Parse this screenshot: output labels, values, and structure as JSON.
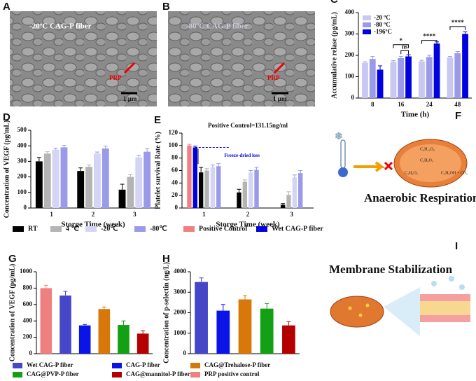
{
  "images": [
    {
      "panel": "A",
      "label": "-20ºC CAG-P fiber",
      "arrow_label": "PRP",
      "scale": "1 μm"
    },
    {
      "panel": "B",
      "label": "-80ºC CAG-P fiber",
      "arrow_label": "PRP",
      "scale": "1 μm"
    }
  ],
  "diagrams": [
    {
      "panel": "F",
      "title": "Anaerobic Respiration",
      "formulas": [
        "C₆H₁₂O₆",
        "C₃H₄O₃",
        "C₃H₆O₃",
        "C₂H₅OH + CO₂"
      ]
    },
    {
      "panel": "I",
      "title": "Membrane Stabilization"
    }
  ],
  "chart_data": [
    {
      "panel": "C",
      "type": "bar",
      "x_label": "Time (h)",
      "y_label": "Accumulative relase (pg/mL)",
      "categories": [
        "8",
        "16",
        "24",
        "48"
      ],
      "series": [
        {
          "name": "-20 ºC",
          "color": "#c8c8f2",
          "values": [
            165,
            170,
            172,
            190
          ],
          "errors": [
            5,
            5,
            5,
            5
          ]
        },
        {
          "name": "-80 ºC",
          "color": "#9a9ae8",
          "values": [
            183,
            187,
            192,
            210
          ],
          "errors": [
            12,
            8,
            8,
            8
          ]
        },
        {
          "name": "-196ºC",
          "color": "#0000e0",
          "values": [
            133,
            195,
            255,
            300
          ],
          "errors": [
            18,
            8,
            8,
            10
          ]
        }
      ],
      "ylim": [
        0,
        400
      ],
      "yticks": [
        0,
        100,
        200,
        300,
        400
      ],
      "annotations": [
        "*",
        "ns",
        "****",
        "****"
      ]
    },
    {
      "panel": "D",
      "type": "bar",
      "x_label": "Storge Time (week)",
      "y_label": "Concentration of VEGF (pg/mL)",
      "categories": [
        "1",
        "2",
        "3"
      ],
      "series": [
        {
          "color": "#000000",
          "values": [
            300,
            238,
            118
          ],
          "errors": [
            25,
            20,
            35
          ]
        },
        {
          "color": "#b4b4b4",
          "values": [
            350,
            265,
            200
          ],
          "errors": [
            12,
            12,
            15
          ]
        },
        {
          "color": "#d4d4f6",
          "values": [
            375,
            350,
            325
          ],
          "errors": [
            10,
            10,
            15
          ]
        },
        {
          "color": "#9a9ae8",
          "values": [
            390,
            383,
            362
          ],
          "errors": [
            12,
            15,
            20
          ]
        }
      ],
      "ylim": [
        0,
        500
      ],
      "yticks": [
        0,
        100,
        200,
        300,
        400,
        500
      ]
    },
    {
      "panel": "E",
      "type": "bar",
      "title": "Positive Control=131.15ng/ml",
      "annotation": "Freeze-dried loss",
      "x_label": "Storge Time (week)",
      "y_label": "Platelet survival Rate (%)",
      "categories": [
        "1",
        "2",
        "3"
      ],
      "series": [
        {
          "name": "Positive Control",
          "color": "#f08080",
          "values": [
            100,
            null,
            null
          ],
          "errors": [
            2,
            null,
            null
          ]
        },
        {
          "name": "Wet CAG-P fiber",
          "color": "#0000e0",
          "values": [
            97,
            null,
            null
          ],
          "errors": [
            2,
            null,
            null
          ]
        },
        {
          "name": "RT",
          "color": "#000000",
          "values": [
            57,
            25,
            5
          ],
          "errors": [
            8,
            5,
            2
          ]
        },
        {
          "name": "4 ℃",
          "color": "#b4b4b4",
          "values": [
            60,
            42,
            21
          ],
          "errors": [
            3,
            3,
            5
          ]
        },
        {
          "name": "-20℃",
          "color": "#d4d4f6",
          "values": [
            65,
            57,
            49
          ],
          "errors": [
            4,
            3,
            4
          ]
        },
        {
          "name": "-80℃",
          "color": "#9a9ae8",
          "values": [
            67,
            61,
            56
          ],
          "errors": [
            4,
            4,
            4
          ]
        }
      ],
      "ylim": [
        0,
        120
      ],
      "yticks": [
        0,
        20,
        40,
        60,
        80,
        100,
        120
      ]
    },
    {
      "panel": "G",
      "type": "bar",
      "y_label": "Concentration of VEGF (pg/mL)",
      "categories": [
        "PRP positive control",
        "Wet CAG-P fiber",
        "CAG-P fiber",
        "CAG@Trehalose-P fiber",
        "CAG@PVP-P fiber",
        "CAG@mannitol-P fiber"
      ],
      "colors": [
        "#f08080",
        "#4646c8",
        "#0a14e6",
        "#d8780a",
        "#14a014",
        "#b40000"
      ],
      "values": [
        800,
        710,
        345,
        545,
        350,
        245
      ],
      "errors": [
        35,
        50,
        12,
        25,
        50,
        35
      ],
      "ylim": [
        0,
        1000
      ],
      "yticks": [
        0,
        200,
        400,
        600,
        800,
        1000
      ]
    },
    {
      "panel": "H",
      "type": "bar",
      "y_label": "Concentration of p-selectin (ng/L)",
      "categories": [
        null,
        null,
        null,
        null,
        null
      ],
      "colors": [
        "#4646c8",
        "#0a14e6",
        "#d8780a",
        "#14a014",
        "#b40000"
      ],
      "values": [
        3500,
        2100,
        2650,
        2200,
        1380
      ],
      "errors": [
        200,
        300,
        180,
        250,
        180
      ],
      "ylim": [
        0,
        4000
      ],
      "yticks": [
        0,
        1000,
        2000,
        3000,
        4000
      ]
    }
  ]
}
